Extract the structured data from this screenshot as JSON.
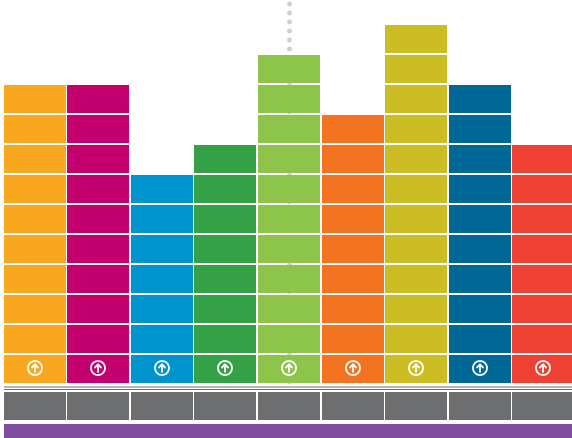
{
  "chart_data": {
    "type": "bar",
    "stacked_segments": true,
    "categories": [
      "",
      "",
      "",
      "",
      "",
      "",
      "",
      "",
      ""
    ],
    "values": [
      10,
      10,
      7,
      8,
      11,
      9,
      12,
      10,
      8
    ],
    "colors": [
      "#F9A71E",
      "#C4006E",
      "#0094CF",
      "#34A147",
      "#8DC54B",
      "#F37321",
      "#CBBD23",
      "#006897",
      "#EF4034"
    ],
    "marker_icon": "arrow-up-circle-icon",
    "base_block_color": "#6D6E70",
    "footer_band_color": "#7F4D9E",
    "center_guide": "dotted-vertical-line",
    "grid": false,
    "legend": "none",
    "title": "",
    "xlabel": "",
    "ylabel": ""
  }
}
